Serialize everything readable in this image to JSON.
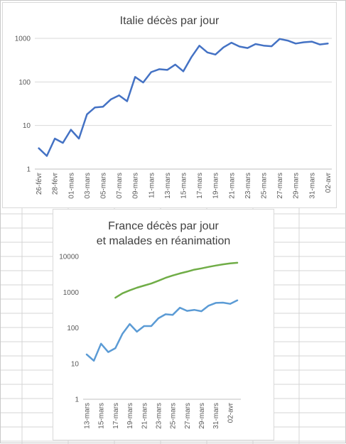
{
  "colors": {
    "italy_line": "#4472c4",
    "france_deaths_line": "#5b9bd5",
    "france_icu_line": "#70ad47",
    "gridline": "#d9d9d9",
    "sheet_grid": "#d4d4d4"
  },
  "chart_data": [
    {
      "type": "line",
      "title": "Italie décès par jour",
      "y_scale": "log",
      "ylim": [
        1,
        1000
      ],
      "y_tick_labels": [
        "1",
        "10",
        "100",
        "1000"
      ],
      "grid": true,
      "x": [
        "26-févr",
        "27-févr",
        "28-févr",
        "29-févr",
        "01-mars",
        "02-mars",
        "03-mars",
        "04-mars",
        "05-mars",
        "06-mars",
        "07-mars",
        "08-mars",
        "09-mars",
        "10-mars",
        "11-mars",
        "12-mars",
        "13-mars",
        "14-mars",
        "15-mars",
        "16-mars",
        "17-mars",
        "18-mars",
        "19-mars",
        "20-mars",
        "21-mars",
        "22-mars",
        "23-mars",
        "24-mars",
        "25-mars",
        "26-mars",
        "27-mars",
        "28-mars",
        "29-mars",
        "30-mars",
        "31-mars",
        "01-avr",
        "02-avr"
      ],
      "x_tick_labels": [
        "26-févr",
        "28-févr",
        "01-mars",
        "03-mars",
        "05-mars",
        "07-mars",
        "09-mars",
        "11-mars",
        "13-mars",
        "15-mars",
        "17-mars",
        "19-mars",
        "21-mars",
        "23-mars",
        "25-mars",
        "27-mars",
        "29-mars",
        "31-mars",
        "02-avr"
      ],
      "series": [
        {
          "values": [
            3,
            2,
            5,
            4,
            8,
            5,
            18,
            26,
            27,
            40,
            49,
            36,
            130,
            97,
            168,
            196,
            189,
            250,
            175,
            368,
            680,
            475,
            425,
            620,
            795,
            650,
            600,
            740,
            683,
            660,
            970,
            890,
            760,
            812,
            840,
            725,
            760
          ]
        }
      ]
    },
    {
      "type": "line",
      "title": "France décès par jour\net malades en réanimation",
      "y_scale": "log",
      "ylim": [
        1,
        10000
      ],
      "y_tick_labels": [
        "1",
        "10",
        "100",
        "1000",
        "10000"
      ],
      "grid": false,
      "x": [
        "13-mars",
        "14-mars",
        "15-mars",
        "16-mars",
        "17-mars",
        "18-mars",
        "19-mars",
        "20-mars",
        "21-mars",
        "22-mars",
        "23-mars",
        "24-mars",
        "25-mars",
        "26-mars",
        "27-mars",
        "28-mars",
        "29-mars",
        "30-mars",
        "31-mars",
        "01-avr",
        "02-avr",
        "03-avr"
      ],
      "x_tick_labels": [
        "13-mars",
        "15-mars",
        "17-mars",
        "19-mars",
        "21-mars",
        "23-mars",
        "25-mars",
        "27-mars",
        "29-mars",
        "31-mars",
        "02-avr"
      ],
      "series": [
        {
          "values": [
            18,
            12,
            36,
            21,
            27,
            69,
            128,
            78,
            112,
            112,
            186,
            240,
            231,
            365,
            299,
            319,
            292,
            418,
            499,
            509,
            471,
            588
          ]
        },
        {
          "values": [
            null,
            null,
            null,
            null,
            699,
            931,
            1122,
            1330,
            1525,
            1746,
            2082,
            2516,
            2935,
            3351,
            3758,
            4273,
            4632,
            5107,
            5565,
            6017,
            6399,
            6662
          ]
        }
      ]
    }
  ]
}
